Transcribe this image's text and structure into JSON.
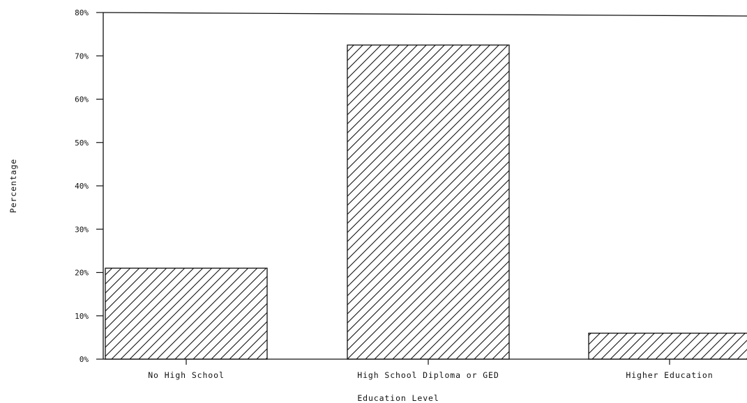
{
  "chart_data": {
    "type": "bar",
    "title": "",
    "xlabel": "Education Level",
    "ylabel": "Percentage",
    "categories": [
      "No High School",
      "High School Diploma or GED",
      "Higher Education"
    ],
    "values": [
      21,
      72.5,
      6
    ],
    "ylim": [
      0,
      80
    ],
    "yticks": [
      "0%",
      "10%",
      "20%",
      "30%",
      "40%",
      "50%",
      "60%",
      "70%",
      "80%"
    ],
    "grid": false,
    "legend": "none",
    "bar_fill": "diagonal-hatch",
    "colors": {
      "line": "#111111",
      "background": "#ffffff"
    }
  }
}
